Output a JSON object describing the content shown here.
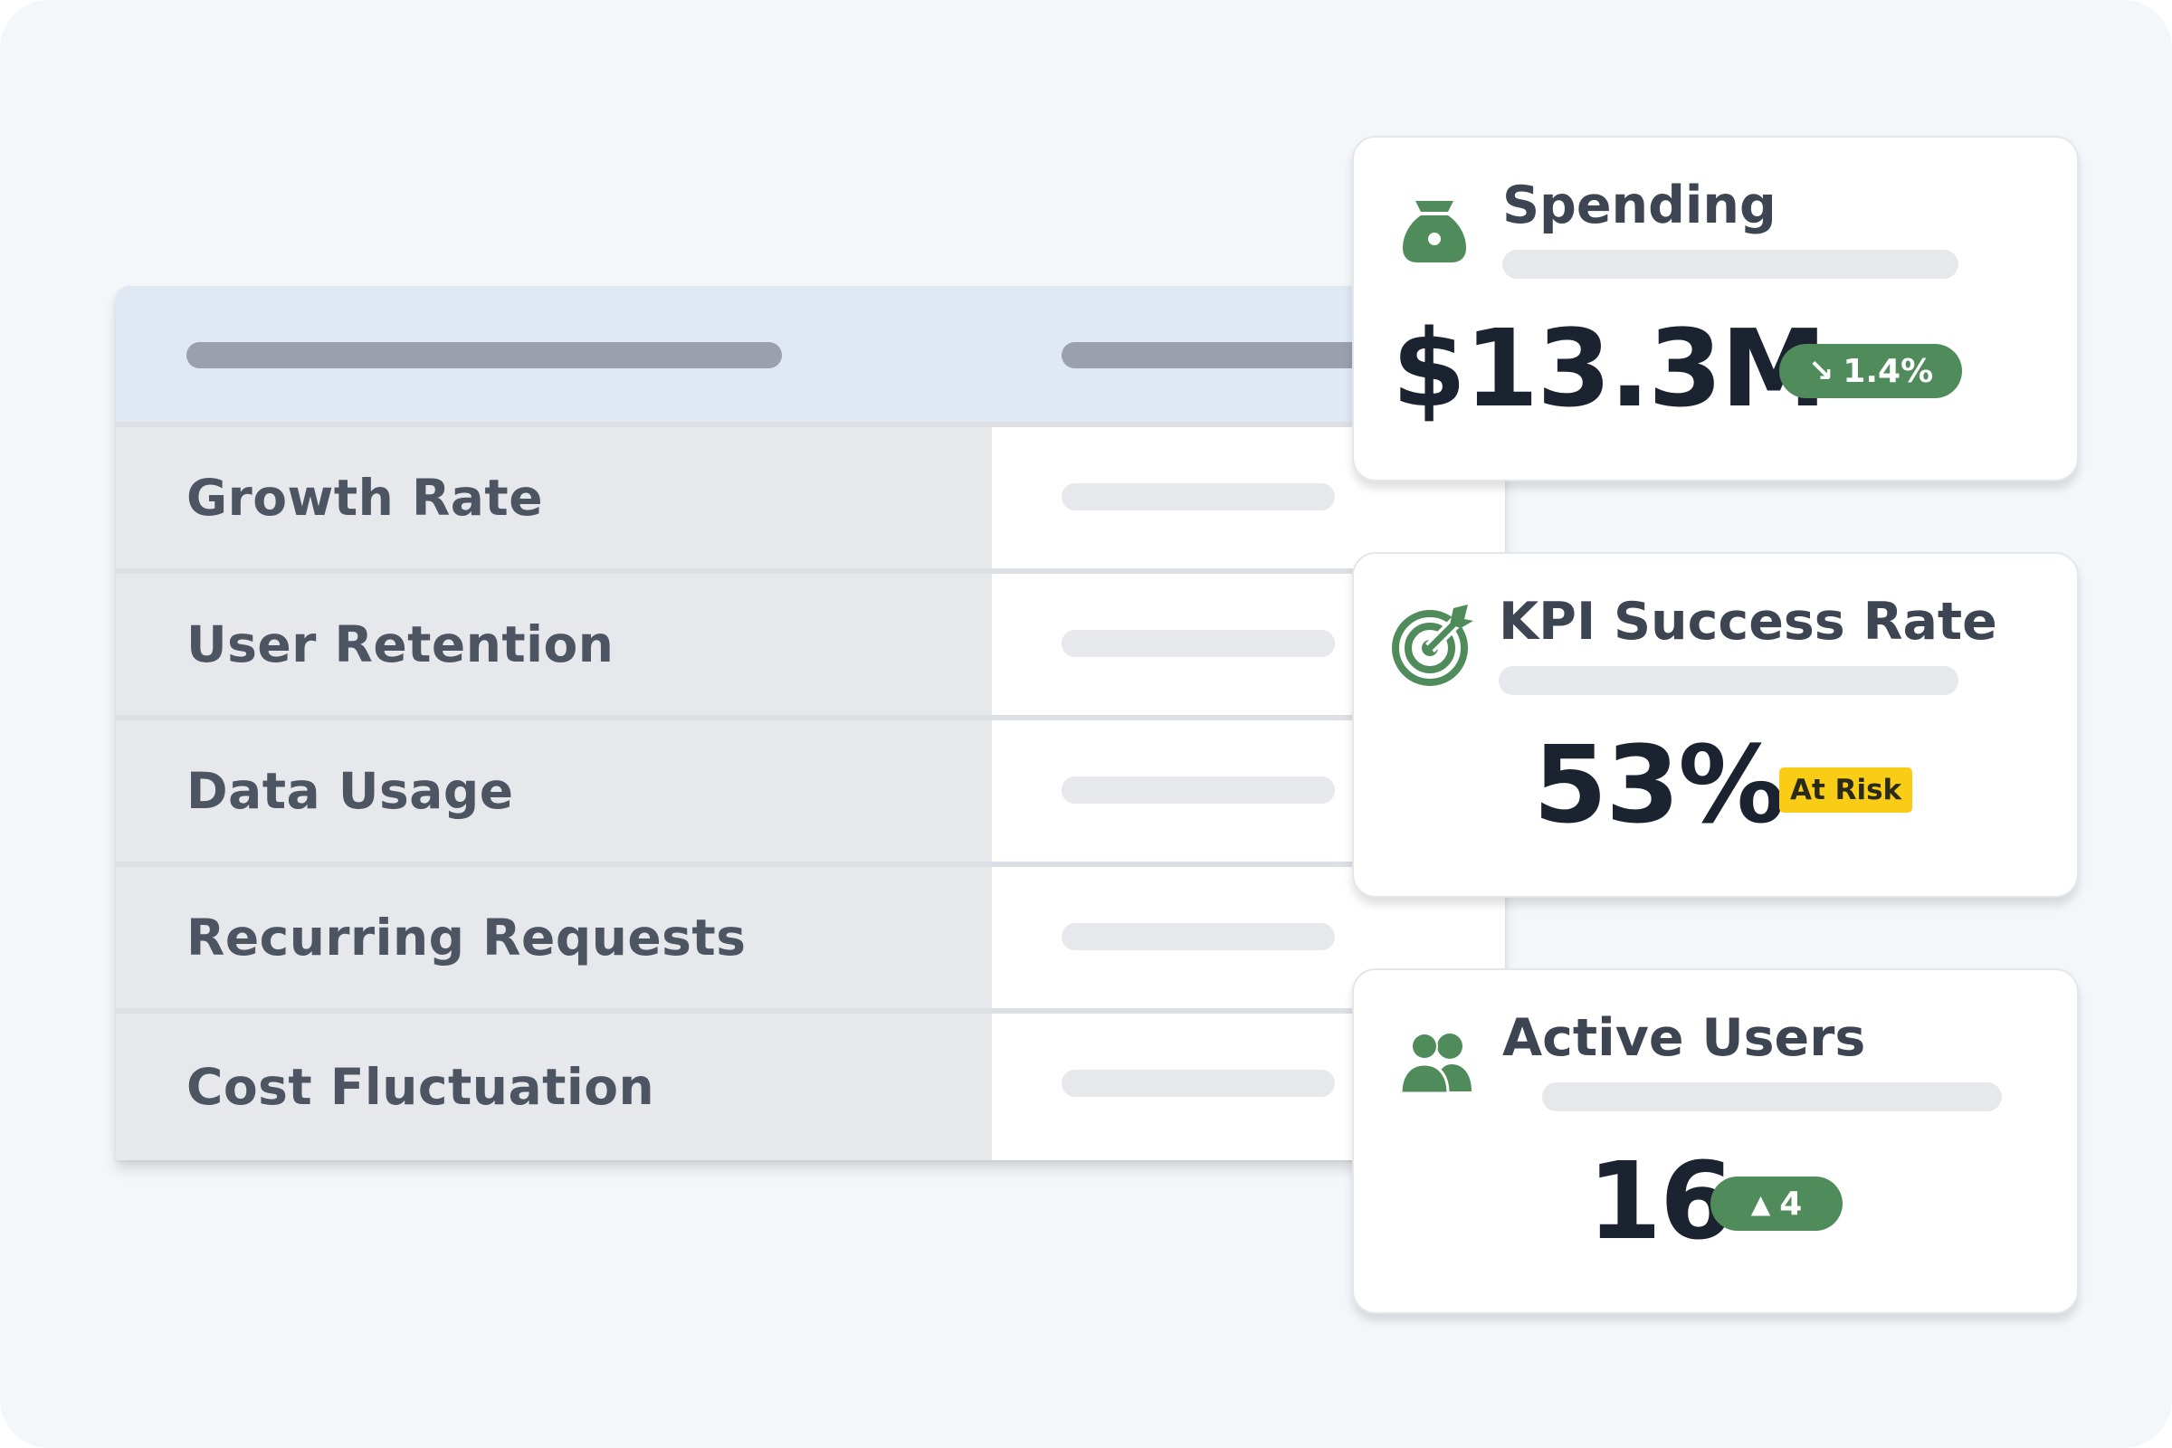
{
  "table": {
    "rows": [
      {
        "label": "Growth Rate"
      },
      {
        "label": "User Retention"
      },
      {
        "label": "Data Usage"
      },
      {
        "label": "Recurring Requests"
      },
      {
        "label": "Cost Fluctuation"
      }
    ]
  },
  "cards": {
    "spending": {
      "title": "Spending",
      "value": "$13.3M",
      "change": "1.4%",
      "change_direction": "down",
      "icon": "money-bag-icon",
      "accent": "#508c5b"
    },
    "kpi": {
      "title": "KPI Success Rate",
      "value": "53%",
      "status": "At Risk",
      "status_color": "#f9cc16",
      "icon": "target-icon"
    },
    "users": {
      "title": "Active Users",
      "value": "16",
      "change": "4",
      "change_direction": "up",
      "icon": "users-icon"
    }
  }
}
